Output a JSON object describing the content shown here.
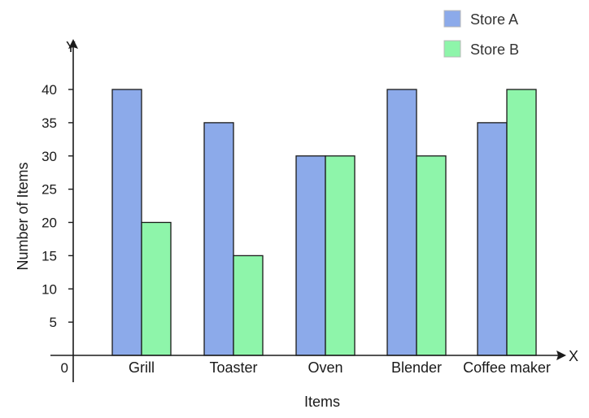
{
  "chart_data": {
    "type": "bar",
    "title": "",
    "categories": [
      "Grill",
      "Toaster",
      "Oven",
      "Blender",
      "Coffee maker"
    ],
    "series": [
      {
        "name": "Store A",
        "color": "#8caaea",
        "values": [
          40,
          35,
          30,
          40,
          35
        ]
      },
      {
        "name": "Store B",
        "color": "#8ef5aa",
        "values": [
          20,
          15,
          30,
          30,
          40
        ]
      }
    ],
    "xlabel": "Items",
    "ylabel": "Number of Items",
    "x_axis_letter": "X",
    "y_axis_letter": "Y",
    "origin_label": "0",
    "ylim": [
      0,
      40
    ],
    "yticks": [
      5,
      10,
      15,
      20,
      25,
      30,
      35,
      40
    ],
    "grid": false,
    "legend_position": "top-right",
    "bar_edge_color": "#1a1a1a"
  }
}
